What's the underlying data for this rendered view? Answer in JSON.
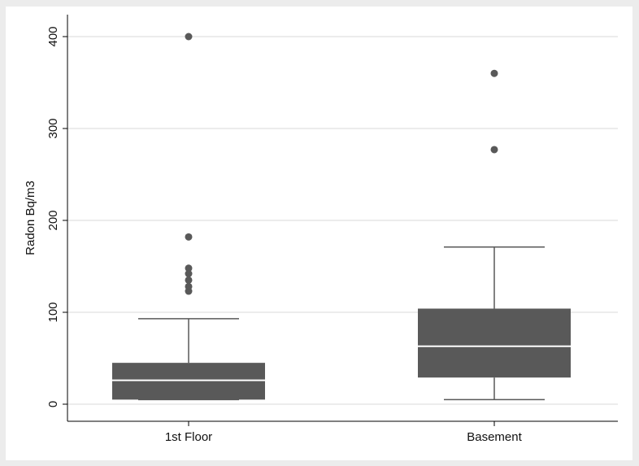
{
  "chart_data": {
    "type": "box",
    "title": "",
    "xlabel": "",
    "ylabel": "Radon Bq/m3",
    "ylim": [
      -18,
      410
    ],
    "yticks": [
      0,
      100,
      200,
      300,
      400
    ],
    "ytick_labels": [
      "0",
      "100",
      "200",
      "300",
      "400"
    ],
    "grid": true,
    "legend": "none",
    "categories": [
      "1st Floor",
      "Basement"
    ],
    "boxes": [
      {
        "category": "1st Floor",
        "whisker_low": 5,
        "q1": 5,
        "median": 26,
        "q3": 45,
        "whisker_high": 93,
        "outliers": [
          123,
          128,
          135,
          142,
          148,
          182,
          400
        ]
      },
      {
        "category": "Basement",
        "whisker_low": 5,
        "q1": 29,
        "median": 63,
        "q3": 104,
        "whisker_high": 171,
        "outliers": [
          277,
          360
        ]
      }
    ],
    "colors": {
      "box": "#595959",
      "median": "#ffffff",
      "whisker": "#595959",
      "outlier": "#595959",
      "grid": "#e6e6e6",
      "axis": "#000000",
      "plot_background": "#ffffff",
      "figure_background": "#ececec"
    }
  }
}
